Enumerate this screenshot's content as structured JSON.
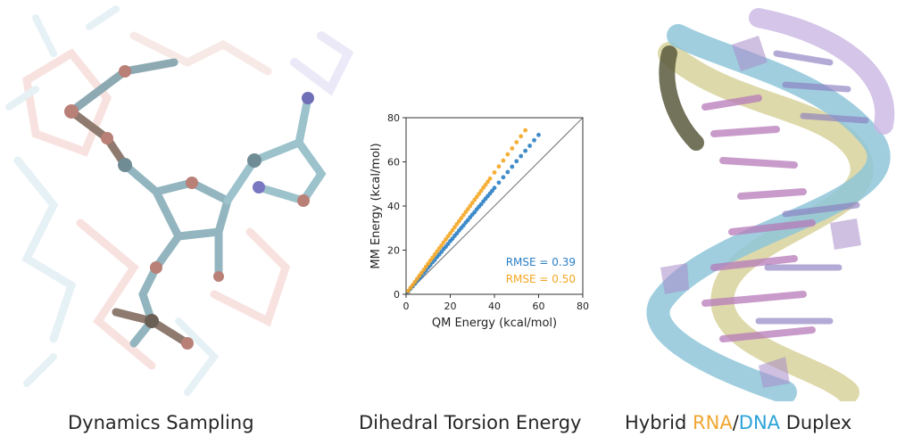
{
  "captions": {
    "left": "Dynamics Sampling",
    "middle": "Dihedral Torsion Energy",
    "right_prefix": "Hybrid ",
    "right_rna": "RNA",
    "right_sep": "/",
    "right_dna": "DNA",
    "right_suffix": " Duplex"
  },
  "colors": {
    "series_blue": "#2b7fc4",
    "series_orange": "#f5a623",
    "rna": "#f0a630",
    "dna": "#2ba3d8"
  },
  "chart_data": {
    "type": "scatter",
    "title": "",
    "xlabel": "QM Energy (kcal/mol)",
    "ylabel": "MM Energy (kcal/mol)",
    "xlim": [
      0,
      80
    ],
    "ylim": [
      0,
      80
    ],
    "xticks": [
      "0",
      "20",
      "40",
      "60",
      "80"
    ],
    "yticks": [
      "0",
      "20",
      "40",
      "60",
      "80"
    ],
    "grid": false,
    "reference_line": "y = x",
    "annotations": [
      {
        "text": "RMSE = 0.39",
        "color": "#2b7fc4"
      },
      {
        "text": "RMSE = 0.50",
        "color": "#f5a623"
      }
    ],
    "series": [
      {
        "color": "#2b7fc4",
        "x": [
          1,
          2,
          3,
          4,
          5,
          6,
          7,
          8,
          9,
          10,
          11,
          12,
          13,
          14,
          15,
          16,
          17,
          18,
          19,
          20,
          21,
          22,
          23,
          24,
          25,
          26,
          27,
          28,
          29,
          30,
          31,
          32,
          33,
          34,
          35,
          36,
          37,
          38,
          39,
          40,
          42,
          44,
          46,
          48,
          50,
          52,
          54,
          56,
          58,
          60
        ],
        "y": [
          1.2,
          2.5,
          3.6,
          4.8,
          6.1,
          7.2,
          8.4,
          9.6,
          10.8,
          12.1,
          13.2,
          14.5,
          15.6,
          16.9,
          18.0,
          19.2,
          20.5,
          21.6,
          22.8,
          24.1,
          25.2,
          26.5,
          27.6,
          28.9,
          30.1,
          31.2,
          32.5,
          33.6,
          34.9,
          36.1,
          37.2,
          38.5,
          39.7,
          40.8,
          42.1,
          43.3,
          44.5,
          45.7,
          46.9,
          48.2,
          50.6,
          53.0,
          55.4,
          57.8,
          60.3,
          62.6,
          65.0,
          67.3,
          69.8,
          72.2
        ]
      },
      {
        "color": "#f5a623",
        "x": [
          1,
          2,
          3,
          4,
          5,
          6,
          7,
          8,
          9,
          10,
          11,
          12,
          13,
          14,
          15,
          16,
          17,
          18,
          19,
          20,
          21,
          22,
          23,
          24,
          25,
          26,
          27,
          28,
          29,
          30,
          31,
          32,
          33,
          34,
          35,
          36,
          37,
          38,
          40,
          42,
          44,
          46,
          48,
          50,
          52,
          54
        ],
        "y": [
          1.5,
          2.9,
          4.2,
          5.6,
          7.0,
          8.4,
          9.7,
          11.1,
          12.5,
          13.9,
          15.3,
          16.6,
          18.0,
          19.4,
          20.8,
          22.1,
          23.5,
          24.9,
          26.3,
          27.6,
          29.0,
          30.4,
          31.8,
          33.1,
          34.5,
          35.9,
          37.3,
          38.6,
          40.0,
          41.4,
          42.8,
          44.1,
          45.5,
          46.9,
          48.3,
          49.6,
          51.0,
          52.4,
          55.2,
          57.9,
          60.6,
          63.4,
          66.1,
          68.9,
          71.6,
          74.3
        ]
      }
    ]
  }
}
